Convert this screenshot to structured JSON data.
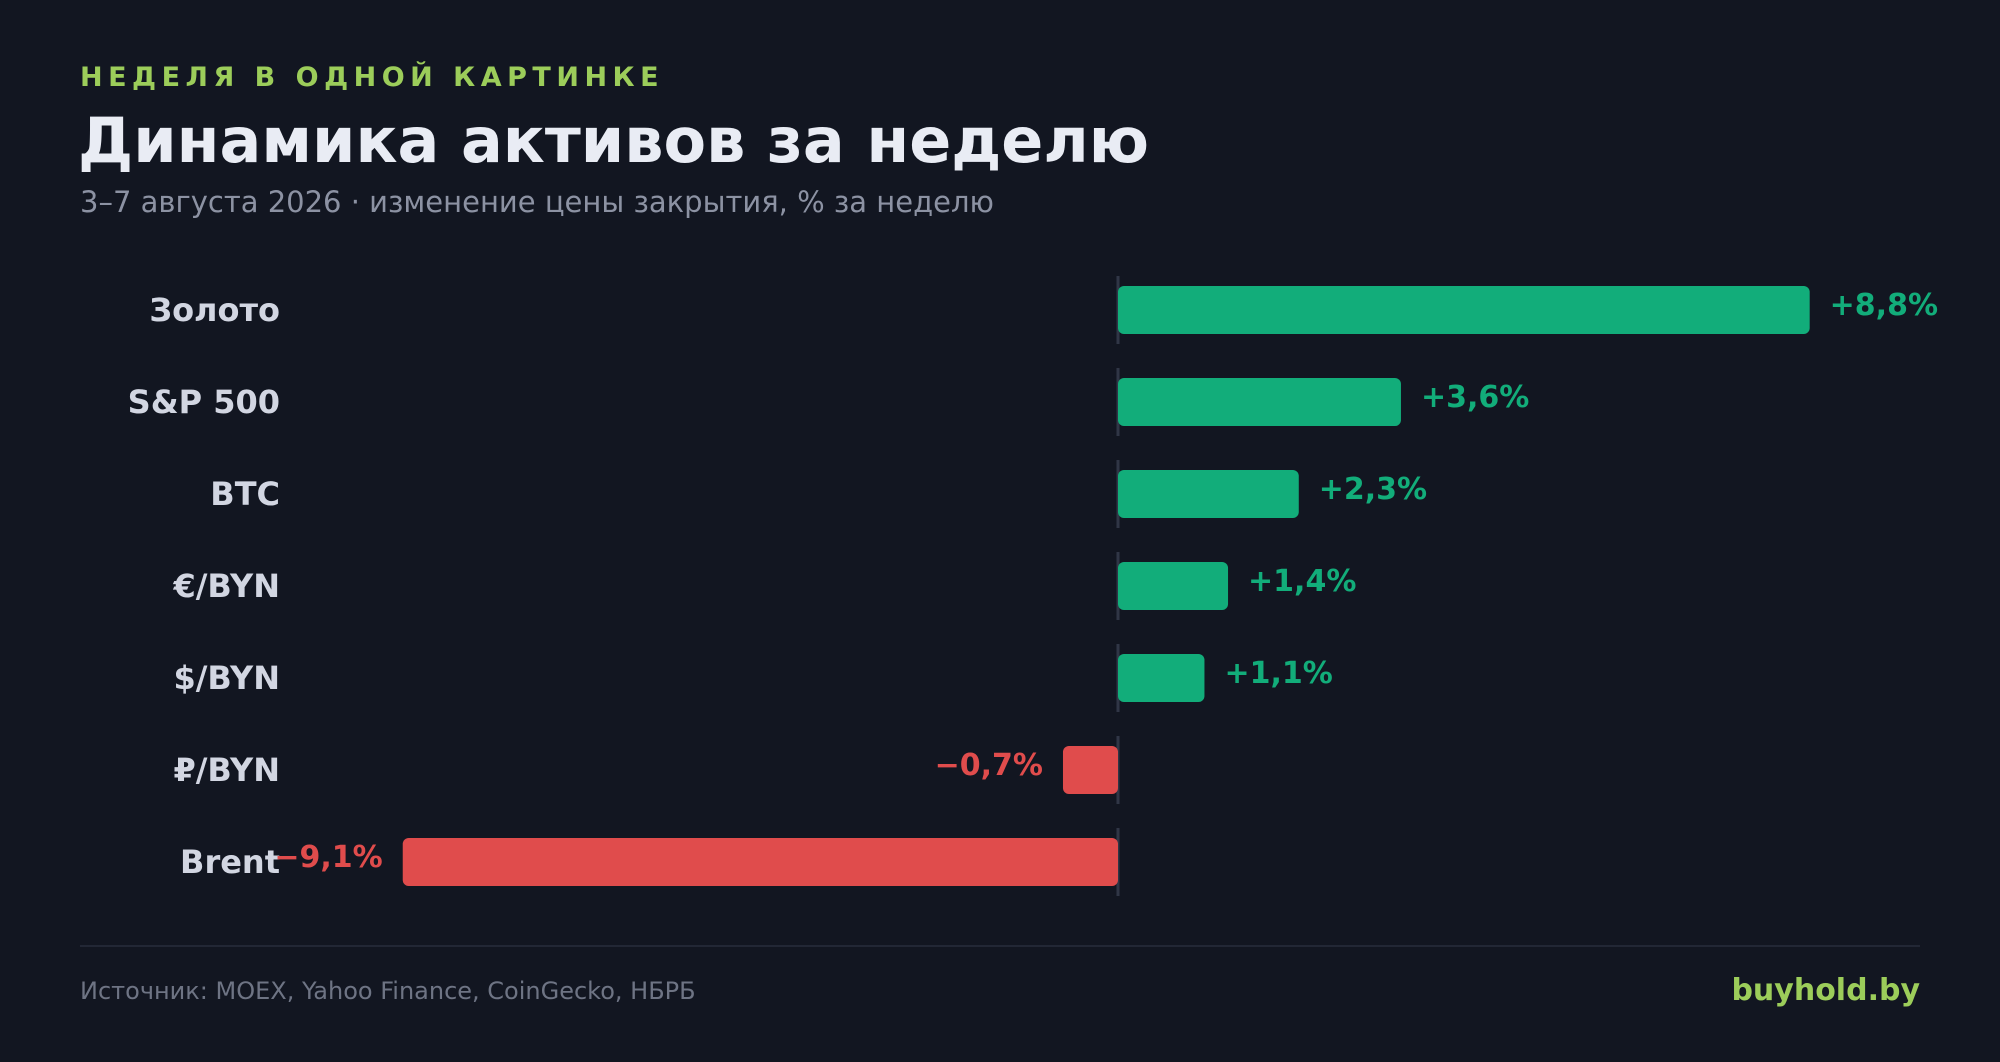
{
  "header": {
    "eyebrow": "НЕДЕЛЯ В ОДНОЙ КАРТИНКЕ",
    "title": "Динамика активов за неделю",
    "subtitle": "3–7 августа 2026 · изменение цены закрытия, % за неделю"
  },
  "footer": {
    "source": "Источник: MOEX, Yahoo Finance, CoinGecko, НБРБ",
    "brand": "buyhold.by"
  },
  "colors": {
    "positive": "#12ad7a",
    "negative": "#e04c4c",
    "label": "#d2d6e2",
    "zero_line": "#303646"
  },
  "chart_data": {
    "type": "bar",
    "orientation": "horizontal",
    "categories": [
      "Золото",
      "S&P 500",
      "BTC",
      "€/BYN",
      "$/BYN",
      "₽/BYN",
      "Brent"
    ],
    "values": [
      8.8,
      3.6,
      2.3,
      1.4,
      1.1,
      -0.7,
      -9.1
    ],
    "value_labels": [
      "+8,8%",
      "+3,6%",
      "+2,3%",
      "+1,4%",
      "+1,1%",
      "−0,7%",
      "−9,1%"
    ],
    "unit": "%",
    "xlim": [
      -9.1,
      8.8
    ],
    "grid": false
  }
}
